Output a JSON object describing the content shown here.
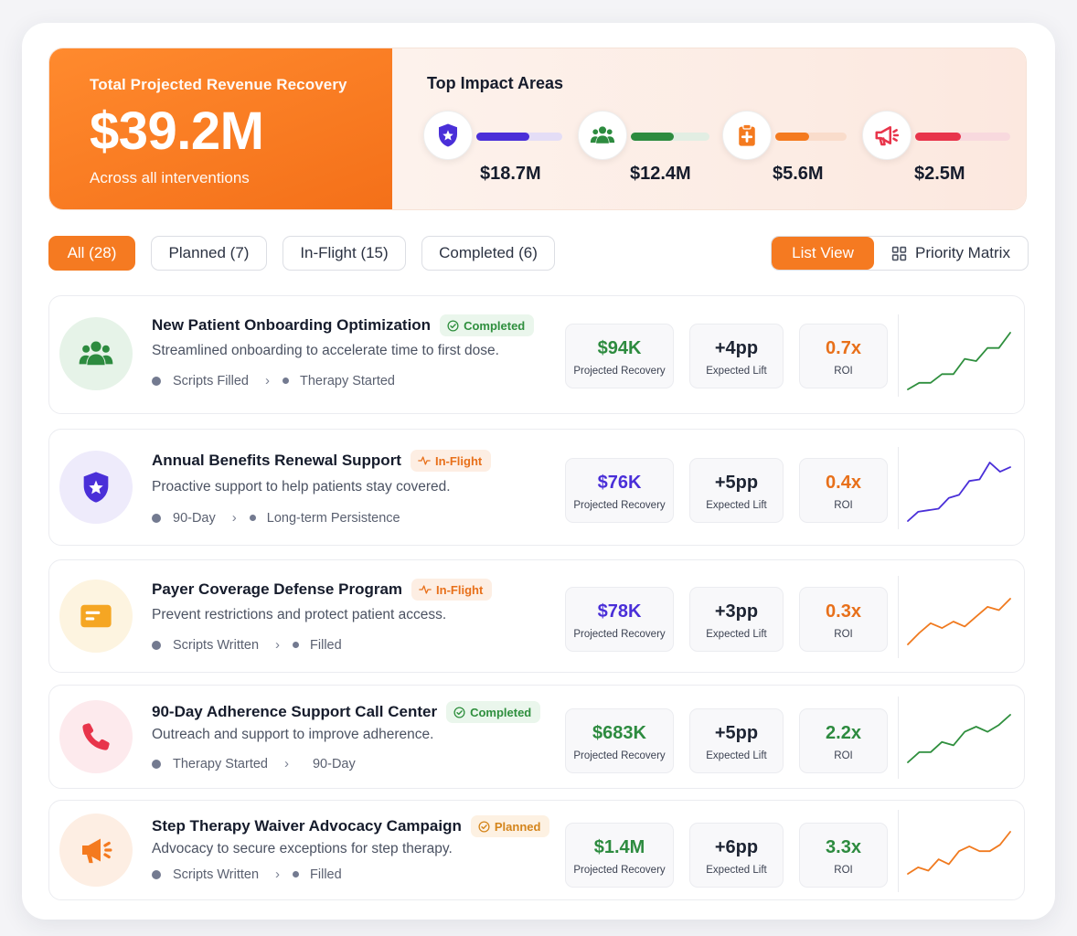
{
  "summary": {
    "label": "Total Projected Revenue Recovery",
    "value": "$39.2M",
    "sub": "Across all interventions"
  },
  "impact_areas": {
    "title": "Top Impact Areas",
    "items": [
      {
        "icon": "shield-star-icon",
        "value": "$18.7M",
        "color": "#4a2fd8",
        "track": "#e4ddf6",
        "fill": 0.62
      },
      {
        "icon": "users-icon",
        "value": "$12.4M",
        "color": "#2d8b3f",
        "track": "#e2eee3",
        "fill": 0.55
      },
      {
        "icon": "clipboard-plus-icon",
        "value": "$5.6M",
        "color": "#f47a1f",
        "track": "#f9dccb",
        "fill": 0.47
      },
      {
        "icon": "megaphone-icon",
        "value": "$2.5M",
        "color": "#e8354b",
        "track": "#f8d9de",
        "fill": 0.48
      }
    ]
  },
  "filters": {
    "all": "All (28)",
    "planned": "Planned (7)",
    "inflight": "In-Flight (15)",
    "completed": "Completed (6)"
  },
  "view_toggle": {
    "list": "List View",
    "matrix": "Priority Matrix"
  },
  "metric_labels": {
    "recovery": "Projected Recovery",
    "lift": "Expected Lift",
    "roi": "ROI"
  },
  "interventions": [
    {
      "title": "New Patient Onboarding Optimization",
      "status": "Completed",
      "desc": "Streamlined onboarding to accelerate time to first dose.",
      "flow_from": "Scripts Filled",
      "flow_to": "Therapy Started",
      "recovery": "$94K",
      "lift": "+4pp",
      "roi": "0.7x",
      "recovery_color": "#2d8b3f",
      "roi_color": "#e8701a",
      "icon": "users-icon",
      "icon_color": "#2d8b3f",
      "icon_bg": "#e6f3e8",
      "spark_color": "#2f8f3e",
      "trend": [
        2,
        5,
        5,
        9,
        9,
        16,
        15,
        21,
        21,
        28
      ]
    },
    {
      "title": "Annual Benefits Renewal Support",
      "status": "In-Flight",
      "desc": "Proactive support to help patients stay covered.",
      "flow_from": "90-Day",
      "flow_to": "Long-term Persistence",
      "recovery": "$76K",
      "lift": "+5pp",
      "roi": "0.4x",
      "recovery_color": "#4a2fd8",
      "roi_color": "#e8701a",
      "icon": "shield-star-icon",
      "icon_color": "#4a2fd8",
      "icon_bg": "#eeebfb",
      "spark_color": "#4a2fd8",
      "trend": [
        2,
        8,
        9,
        10,
        17,
        19,
        28,
        29,
        40,
        34,
        37
      ]
    },
    {
      "title": "Payer Coverage Defense Program",
      "status": "In-Flight",
      "desc": "Prevent restrictions and protect patient access.",
      "flow_from": "Scripts Written",
      "flow_to": "Filled",
      "recovery": "$78K",
      "lift": "+3pp",
      "roi": "0.3x",
      "recovery_color": "#4a2fd8",
      "roi_color": "#e8701a",
      "icon": "card-icon",
      "icon_color": "#f5a623",
      "icon_bg": "#fdf4e0",
      "spark_color": "#f07a1f",
      "trend": [
        2,
        9,
        15,
        12,
        16,
        13,
        19,
        25,
        23,
        30
      ]
    },
    {
      "title": "90-Day Adherence Support Call Center",
      "status": "Completed",
      "desc": "Outreach and support to improve adherence.",
      "flow_from": "Therapy Started",
      "flow_to": "90-Day",
      "recovery": "$683K",
      "lift": "+5pp",
      "roi": "2.2x",
      "recovery_color": "#2d8b3f",
      "roi_color": "#2d8b3f",
      "icon": "phone-icon",
      "icon_color": "#e8354b",
      "icon_bg": "#fdeaed",
      "spark_color": "#2f8f3e",
      "trend": [
        2,
        8,
        8,
        14,
        12,
        20,
        23,
        20,
        24,
        30
      ]
    },
    {
      "title": "Step Therapy Waiver Advocacy Campaign",
      "status": "Planned",
      "desc": "Advocacy to secure exceptions for step therapy.",
      "flow_from": "Scripts Written",
      "flow_to": "Filled",
      "recovery": "$1.4M",
      "lift": "+6pp",
      "roi": "3.3x",
      "recovery_color": "#2d8b3f",
      "roi_color": "#2d8b3f",
      "icon": "megaphone-icon",
      "icon_color": "#f47a1f",
      "icon_bg": "#fdeee3",
      "spark_color": "#f07a1f",
      "trend": [
        2,
        6,
        4,
        11,
        8,
        16,
        19,
        16,
        16,
        20,
        28
      ]
    }
  ]
}
